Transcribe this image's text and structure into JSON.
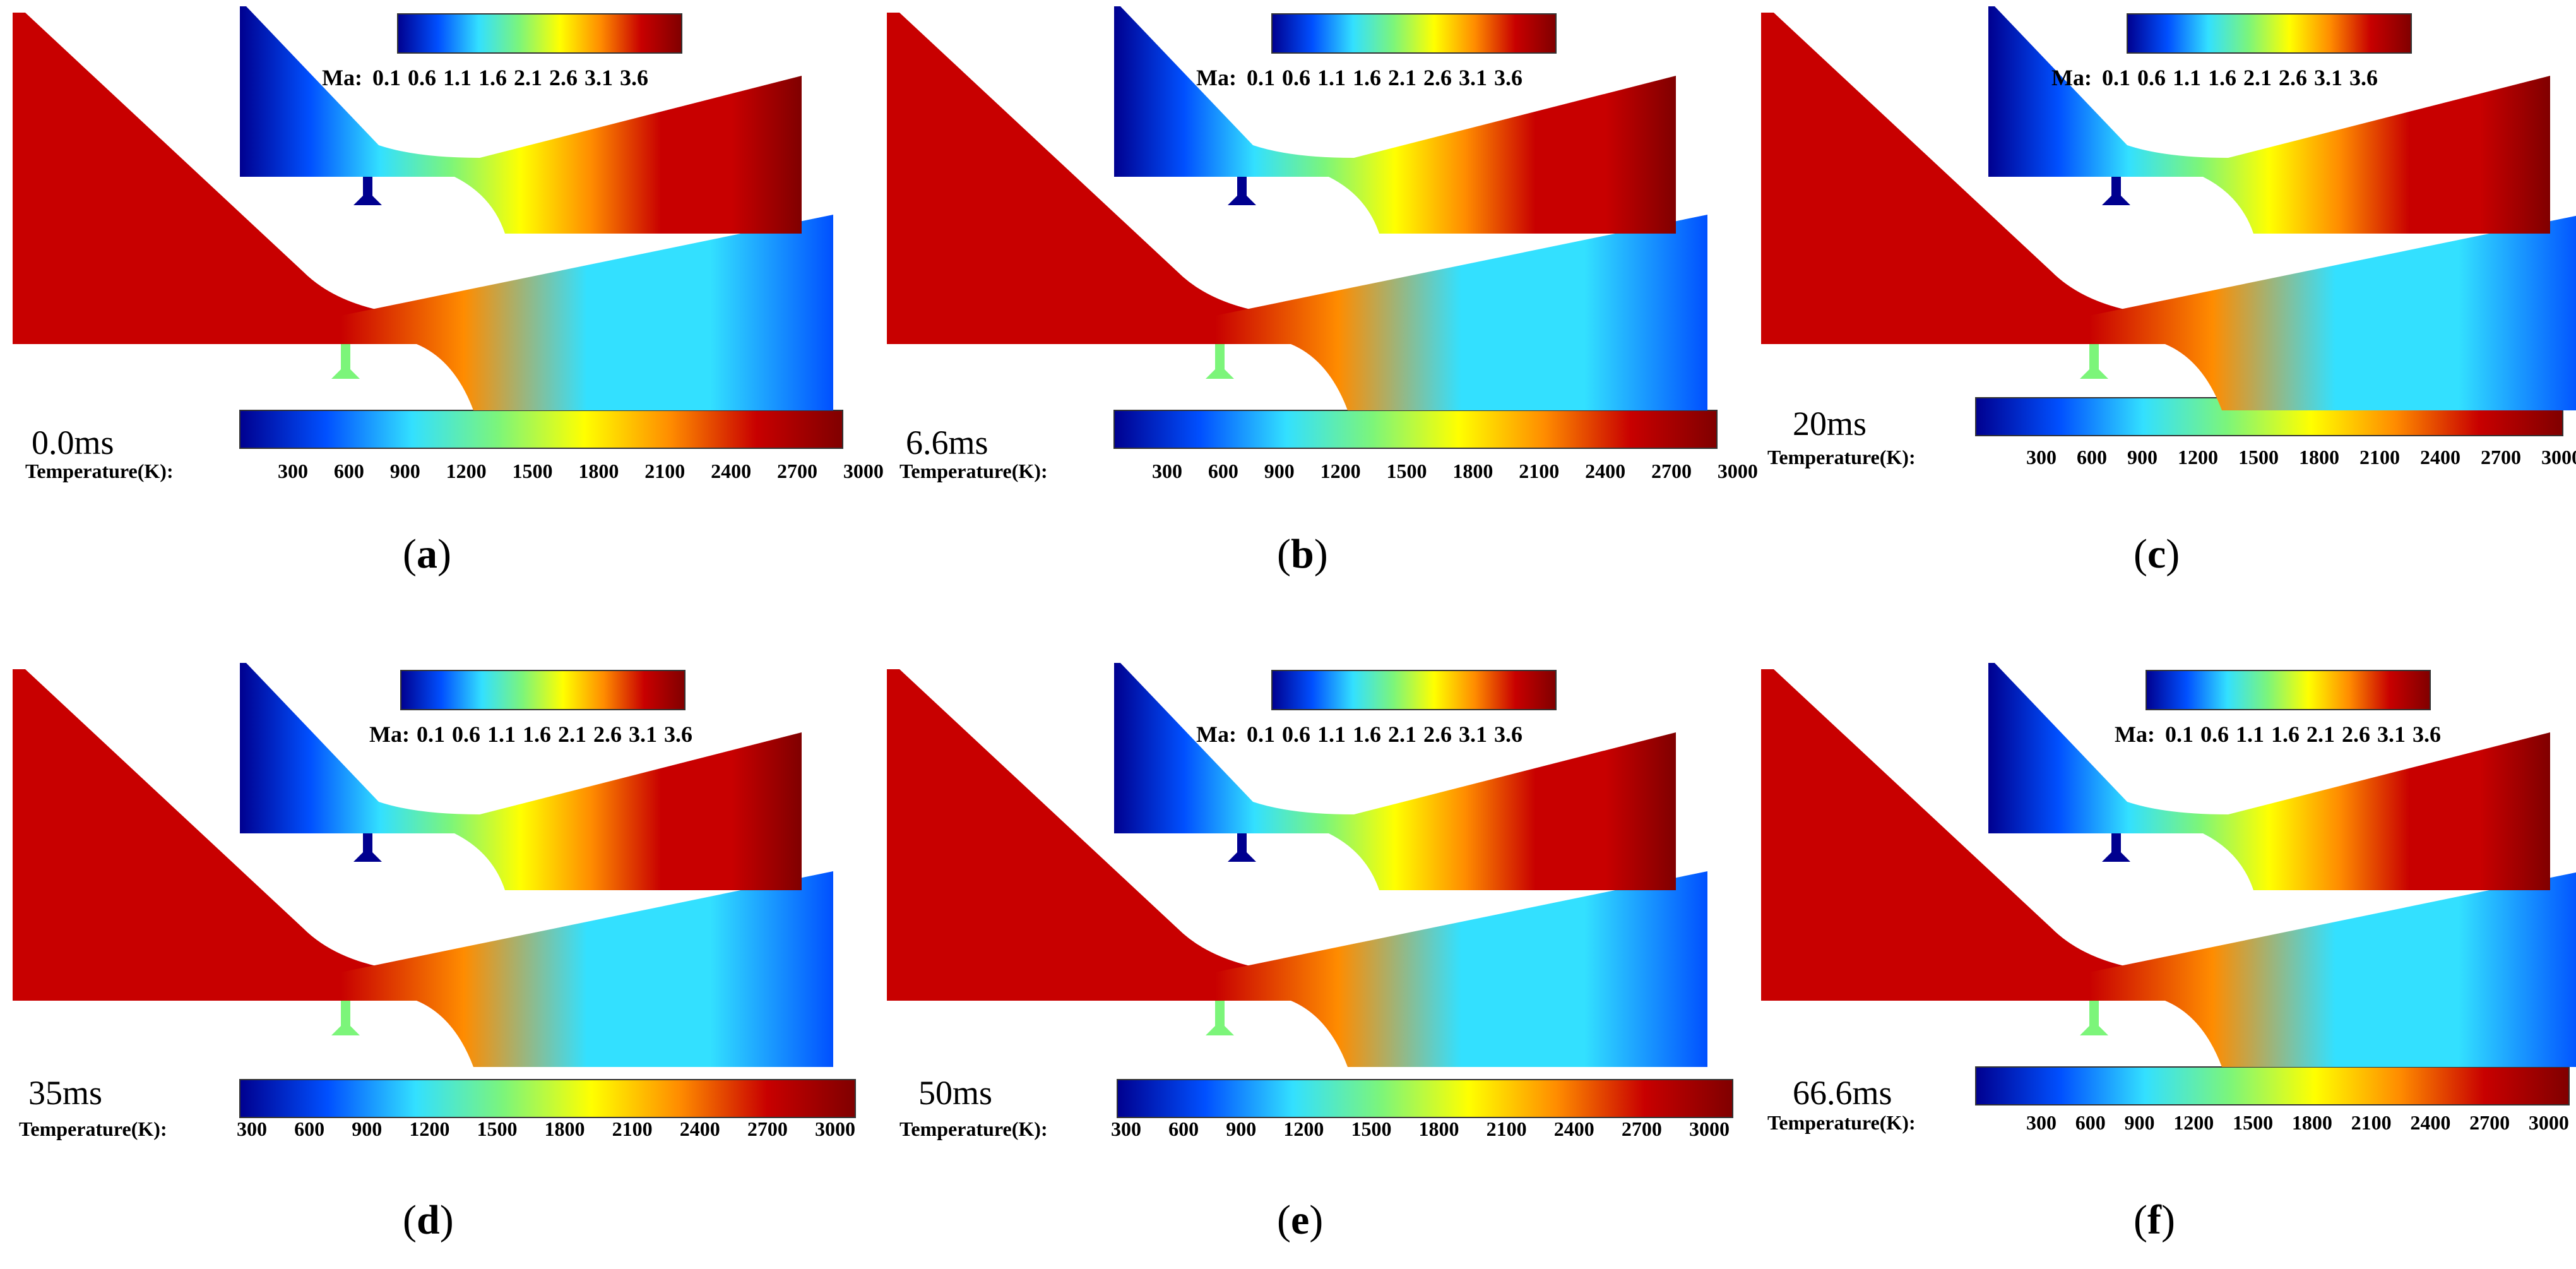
{
  "colors": {
    "dark_blue": "#00008f",
    "blue": "#0050ff",
    "cyan": "#33e0ff",
    "green": "#7cf57a",
    "yellow": "#ffff00",
    "orange": "#ff8c00",
    "red": "#c80000",
    "dark_red": "#800000"
  },
  "ma_colorbar": {
    "label": "Ma:",
    "ticks": [
      "0.1",
      "0.6",
      "1.1",
      "1.6",
      "2.1",
      "2.6",
      "3.1",
      "3.6"
    ]
  },
  "temp_colorbar": {
    "label": "Temperature(K):",
    "ticks": [
      "300",
      "600",
      "900",
      "1200",
      "1500",
      "1800",
      "2100",
      "2400",
      "2700",
      "3000"
    ]
  },
  "panels": [
    {
      "id": "a",
      "time": "0.0ms",
      "caption_open": "(",
      "caption_letter": "a",
      "caption_close": ")"
    },
    {
      "id": "b",
      "time": "6.6ms",
      "caption_open": "(",
      "caption_letter": "b",
      "caption_close": ")"
    },
    {
      "id": "c",
      "time": "20ms",
      "caption_open": "(",
      "caption_letter": "c",
      "caption_close": ")"
    },
    {
      "id": "d",
      "time": "35ms",
      "caption_open": "(",
      "caption_letter": "d",
      "caption_close": ")"
    },
    {
      "id": "e",
      "time": "50ms",
      "caption_open": "(",
      "caption_letter": "e",
      "caption_close": ")"
    },
    {
      "id": "f",
      "time": "66.6ms",
      "caption_open": "(",
      "caption_letter": "f",
      "caption_close": ")"
    }
  ]
}
